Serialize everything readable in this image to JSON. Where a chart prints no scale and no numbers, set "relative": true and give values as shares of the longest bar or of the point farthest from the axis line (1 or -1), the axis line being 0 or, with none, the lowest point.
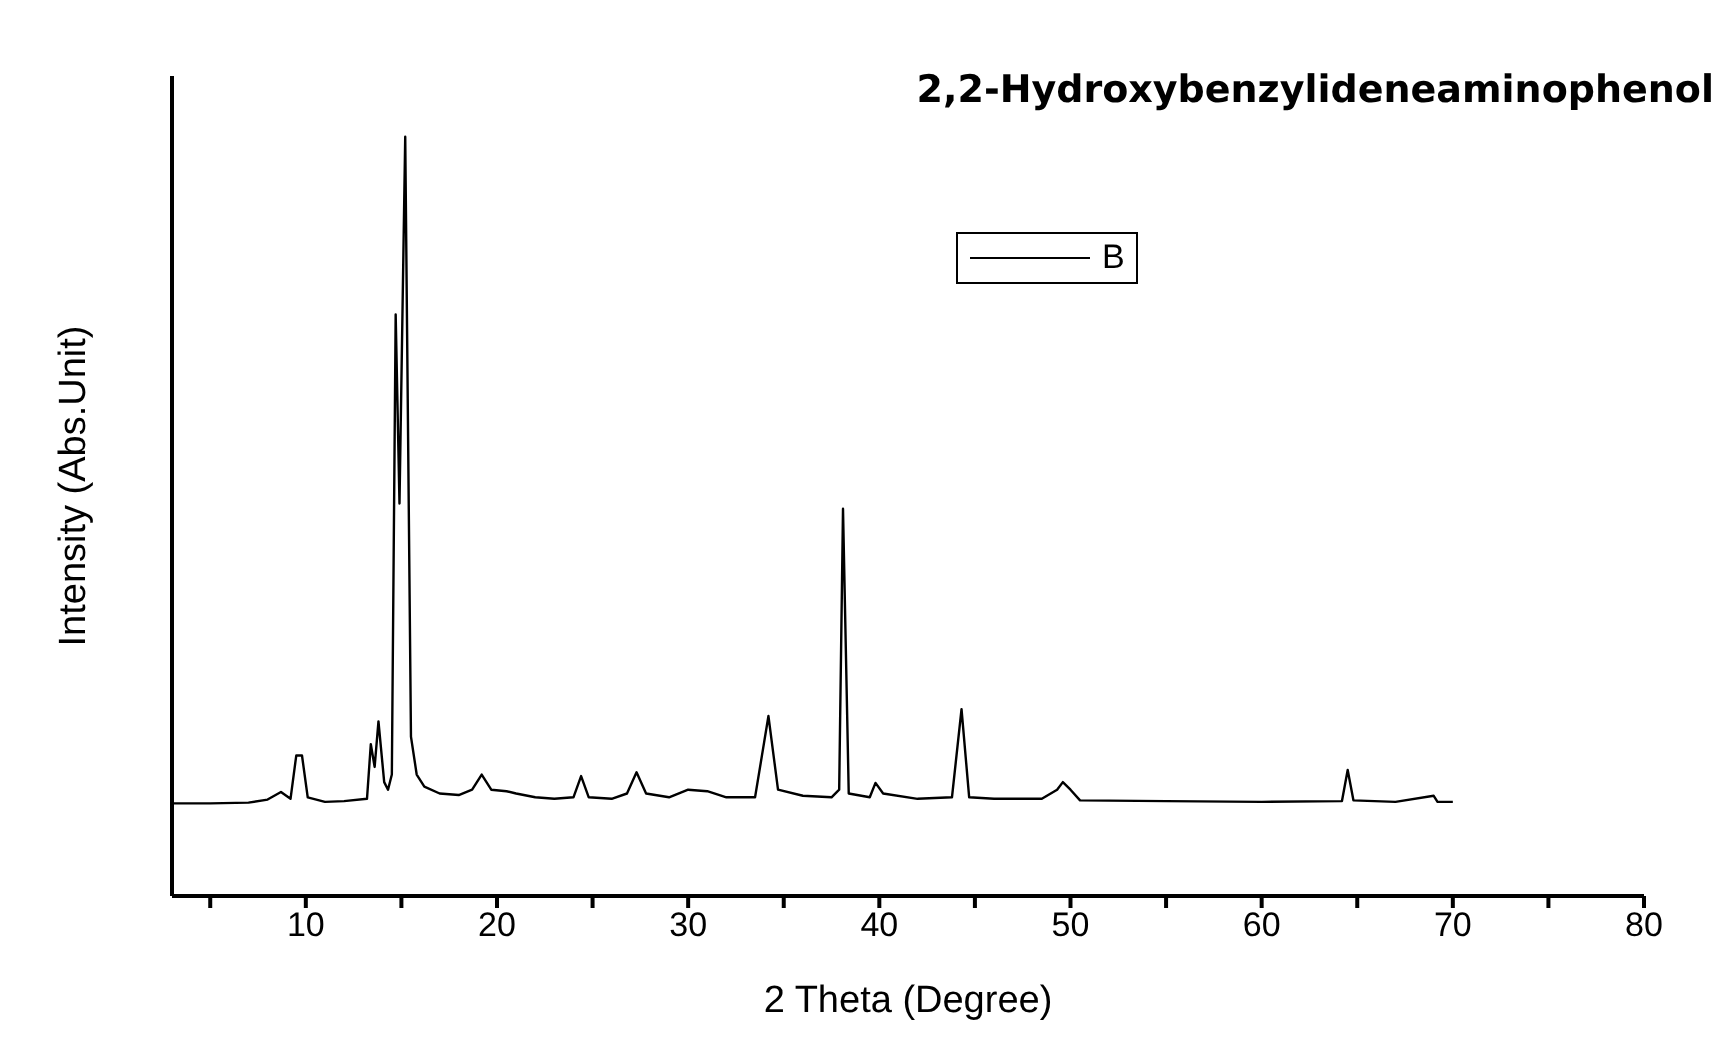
{
  "chart_data": {
    "type": "line",
    "title": "2,2-Hydroxybenzylideneaminophenol",
    "xlabel": "2 Theta (Degree)",
    "ylabel": "Intensity (Abs.Unit)",
    "relative": true,
    "legend": "top right",
    "xlim": [
      3,
      80
    ],
    "xticks": [
      {
        "value": 5,
        "label": null
      },
      10,
      {
        "value": 15,
        "label": null
      },
      20,
      {
        "value": 25,
        "label": null
      },
      30,
      {
        "value": 35,
        "label": null
      },
      40,
      {
        "value": 45,
        "label": null
      },
      50,
      {
        "value": 55,
        "label": null
      },
      60,
      {
        "value": 65,
        "label": null
      },
      70,
      {
        "value": 75,
        "label": null
      },
      80
    ],
    "x": [
      3,
      5,
      7,
      8,
      8.7,
      9.2,
      9.5,
      9.8,
      10.1,
      11,
      12,
      13.2,
      13.4,
      13.6,
      13.8,
      14.1,
      14.3,
      14.5,
      14.7,
      14.9,
      15.2,
      15.5,
      15.8,
      16.2,
      17,
      18,
      18.7,
      19.2,
      19.7,
      20.5,
      21,
      22,
      23,
      24,
      24.4,
      24.8,
      26,
      26.8,
      27.3,
      27.8,
      29,
      30,
      31,
      32,
      33.5,
      34.2,
      34.7,
      36,
      37.5,
      37.9,
      38.1,
      38.4,
      39.5,
      39.8,
      40.2,
      42,
      43.8,
      44.3,
      44.7,
      46,
      48.5,
      49.3,
      49.6,
      50,
      50.5,
      55,
      60,
      64.2,
      64.5,
      64.8,
      67,
      69,
      69.2,
      70
    ],
    "series": [
      {
        "name": "B",
        "color": "#000000",
        "values": [
          0.122,
          0.122,
          0.123,
          0.127,
          0.137,
          0.128,
          0.185,
          0.185,
          0.13,
          0.124,
          0.125,
          0.128,
          0.2,
          0.17,
          0.23,
          0.15,
          0.14,
          0.16,
          0.766,
          0.517,
          1.0,
          0.21,
          0.16,
          0.144,
          0.135,
          0.133,
          0.14,
          0.16,
          0.14,
          0.138,
          0.135,
          0.13,
          0.128,
          0.13,
          0.158,
          0.13,
          0.128,
          0.135,
          0.163,
          0.135,
          0.13,
          0.14,
          0.138,
          0.13,
          0.13,
          0.237,
          0.14,
          0.132,
          0.13,
          0.14,
          0.51,
          0.135,
          0.13,
          0.149,
          0.135,
          0.128,
          0.13,
          0.246,
          0.13,
          0.128,
          0.128,
          0.14,
          0.15,
          0.14,
          0.126,
          0.125,
          0.124,
          0.125,
          0.166,
          0.126,
          0.124,
          0.132,
          0.124,
          0.124
        ]
      }
    ]
  }
}
